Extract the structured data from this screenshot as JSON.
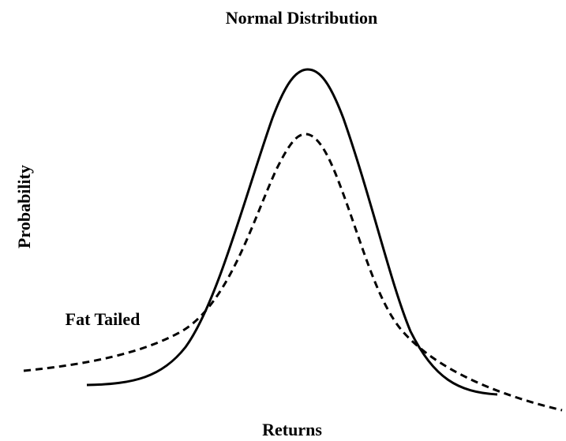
{
  "title": "Normal Distribution",
  "y_label": "Probability",
  "x_label": "Returns",
  "annotation": "Fat Tailed"
}
